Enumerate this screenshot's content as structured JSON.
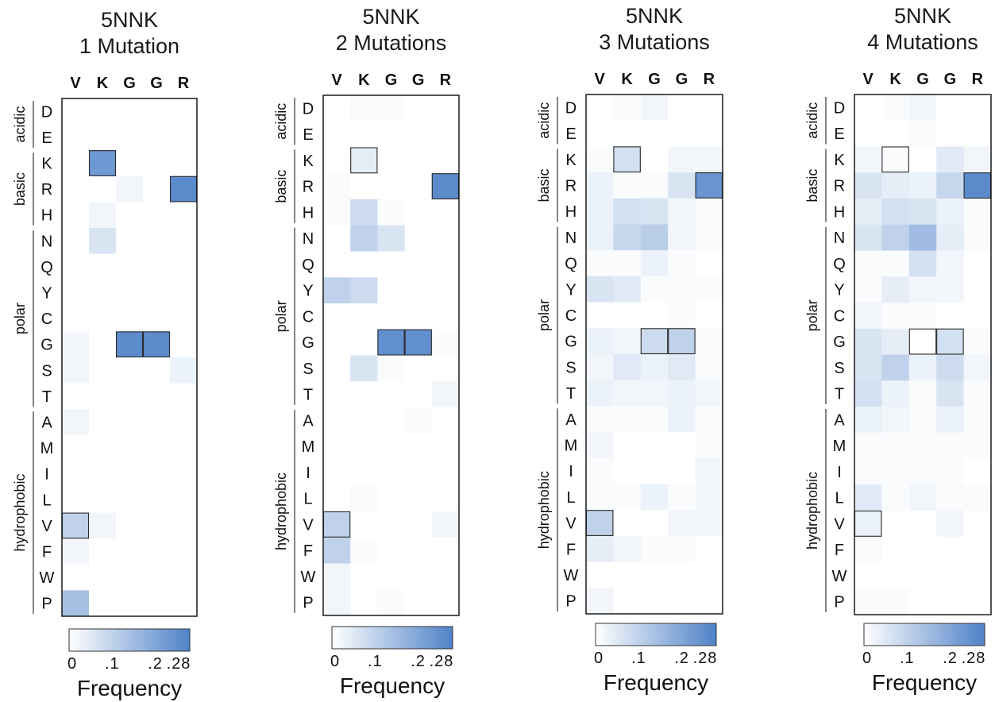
{
  "colors": {
    "low": "#ffffff",
    "high": "#4f82c8",
    "frame": "#1a1a1a",
    "wt_outline": "#2a2a2a"
  },
  "chart_data": [
    {
      "type": "heatmap",
      "title_line1": "5NNK",
      "title_line2": "1 Mutation",
      "x_categories": [
        "V",
        "K",
        "G",
        "G",
        "R"
      ],
      "y_categories": [
        "D",
        "E",
        "K",
        "R",
        "H",
        "N",
        "Q",
        "Y",
        "C",
        "G",
        "S",
        "T",
        "A",
        "M",
        "I",
        "L",
        "V",
        "F",
        "W",
        "P"
      ],
      "groups": [
        {
          "name": "acidic",
          "rows": [
            "D",
            "E"
          ]
        },
        {
          "name": "basic",
          "rows": [
            "K",
            "R",
            "H"
          ]
        },
        {
          "name": "polar",
          "rows": [
            "N",
            "Q",
            "Y",
            "C",
            "G",
            "S",
            "T"
          ]
        },
        {
          "name": "hydrophobic",
          "rows": [
            "A",
            "M",
            "I",
            "L",
            "V",
            "F",
            "W",
            "P"
          ]
        }
      ],
      "values": [
        [
          0,
          0,
          0,
          0,
          0
        ],
        [
          0,
          0,
          0,
          0,
          0
        ],
        [
          0,
          0.23,
          0,
          0,
          0
        ],
        [
          0,
          0,
          0.02,
          0,
          0.26
        ],
        [
          0,
          0.02,
          0,
          0,
          0
        ],
        [
          0,
          0.06,
          0,
          0,
          0
        ],
        [
          0,
          0,
          0,
          0,
          0
        ],
        [
          0,
          0,
          0,
          0,
          0
        ],
        [
          0,
          0,
          0,
          0,
          0
        ],
        [
          0.02,
          0,
          0.26,
          0.26,
          0
        ],
        [
          0.02,
          0,
          0,
          0,
          0.03
        ],
        [
          0,
          0,
          0,
          0,
          0
        ],
        [
          0.02,
          0,
          0,
          0,
          0
        ],
        [
          0,
          0,
          0,
          0,
          0
        ],
        [
          0,
          0,
          0,
          0,
          0
        ],
        [
          0,
          0,
          0,
          0,
          0
        ],
        [
          0.1,
          0.02,
          0,
          0,
          0
        ],
        [
          0.02,
          0,
          0,
          0,
          0
        ],
        [
          0,
          0,
          0,
          0,
          0
        ],
        [
          0.14,
          0,
          0,
          0,
          0
        ]
      ],
      "wildtype": [
        "V",
        "K",
        "G",
        "G",
        "R"
      ],
      "colorbar": {
        "ticks": [
          "0",
          ".1",
          ".2",
          ".28"
        ],
        "min": 0,
        "max": 0.28,
        "label": "Frequency"
      }
    },
    {
      "type": "heatmap",
      "title_line1": "5NNK",
      "title_line2": "2 Mutations",
      "x_categories": [
        "V",
        "K",
        "G",
        "G",
        "R"
      ],
      "y_categories": [
        "D",
        "E",
        "K",
        "R",
        "H",
        "N",
        "Q",
        "Y",
        "C",
        "G",
        "S",
        "T",
        "A",
        "M",
        "I",
        "L",
        "V",
        "F",
        "W",
        "P"
      ],
      "groups": [
        {
          "name": "acidic",
          "rows": [
            "D",
            "E"
          ]
        },
        {
          "name": "basic",
          "rows": [
            "K",
            "R",
            "H"
          ]
        },
        {
          "name": "polar",
          "rows": [
            "N",
            "Q",
            "Y",
            "C",
            "G",
            "S",
            "T"
          ]
        },
        {
          "name": "hydrophobic",
          "rows": [
            "A",
            "M",
            "I",
            "L",
            "V",
            "F",
            "W",
            "P"
          ]
        }
      ],
      "values": [
        [
          0,
          0.01,
          0.01,
          0,
          0
        ],
        [
          0,
          0,
          0,
          0,
          0
        ],
        [
          0,
          0.04,
          0,
          0,
          0
        ],
        [
          0.01,
          0,
          0,
          0,
          0.26
        ],
        [
          0.01,
          0.08,
          0.01,
          0,
          0
        ],
        [
          0,
          0.1,
          0.06,
          0,
          0
        ],
        [
          0,
          0,
          0,
          0,
          0
        ],
        [
          0.1,
          0.08,
          0,
          0,
          0
        ],
        [
          0,
          0,
          0,
          0,
          0
        ],
        [
          0,
          0,
          0.25,
          0.25,
          0.01
        ],
        [
          0,
          0.06,
          0.01,
          0,
          0
        ],
        [
          0,
          0,
          0,
          0,
          0.02
        ],
        [
          0,
          0,
          0,
          0.01,
          0
        ],
        [
          0,
          0,
          0,
          0,
          0
        ],
        [
          0,
          0,
          0,
          0,
          0
        ],
        [
          0,
          0.01,
          0,
          0,
          0
        ],
        [
          0.1,
          0,
          0,
          0,
          0.02
        ],
        [
          0.1,
          0.01,
          0,
          0,
          0
        ],
        [
          0.02,
          0,
          0,
          0,
          0
        ],
        [
          0.02,
          0,
          0.01,
          0,
          0
        ]
      ],
      "wildtype": [
        "V",
        "K",
        "G",
        "G",
        "R"
      ],
      "colorbar": {
        "ticks": [
          "0",
          ".1",
          ".2",
          ".28"
        ],
        "min": 0,
        "max": 0.28,
        "label": "Frequency"
      }
    },
    {
      "type": "heatmap",
      "title_line1": "5NNK",
      "title_line2": "3 Mutations",
      "x_categories": [
        "V",
        "K",
        "G",
        "G",
        "R"
      ],
      "y_categories": [
        "D",
        "E",
        "K",
        "R",
        "H",
        "N",
        "Q",
        "Y",
        "C",
        "G",
        "S",
        "T",
        "A",
        "M",
        "I",
        "L",
        "V",
        "F",
        "W",
        "P"
      ],
      "groups": [
        {
          "name": "acidic",
          "rows": [
            "D",
            "E"
          ]
        },
        {
          "name": "basic",
          "rows": [
            "K",
            "R",
            "H"
          ]
        },
        {
          "name": "polar",
          "rows": [
            "N",
            "Q",
            "Y",
            "C",
            "G",
            "S",
            "T"
          ]
        },
        {
          "name": "hydrophobic",
          "rows": [
            "A",
            "M",
            "I",
            "L",
            "V",
            "F",
            "W",
            "P"
          ]
        }
      ],
      "values": [
        [
          0,
          0.01,
          0.02,
          0,
          0
        ],
        [
          0,
          0,
          0,
          0,
          0
        ],
        [
          0.01,
          0.07,
          0,
          0.02,
          0.02
        ],
        [
          0.03,
          0.01,
          0.01,
          0.06,
          0.24
        ],
        [
          0.03,
          0.07,
          0.06,
          0.02,
          0.01
        ],
        [
          0.03,
          0.09,
          0.11,
          0.02,
          0.01
        ],
        [
          0.01,
          0.01,
          0.03,
          0.01,
          0
        ],
        [
          0.06,
          0.05,
          0.01,
          0.01,
          0.01
        ],
        [
          0,
          0,
          0,
          0.01,
          0
        ],
        [
          0.03,
          0.02,
          0.08,
          0.1,
          0.01
        ],
        [
          0.02,
          0.05,
          0.03,
          0.05,
          0.01
        ],
        [
          0.03,
          0.02,
          0.02,
          0.03,
          0.02
        ],
        [
          0.01,
          0.01,
          0.01,
          0.03,
          0.01
        ],
        [
          0.02,
          0,
          0,
          0,
          0.01
        ],
        [
          0.01,
          0,
          0,
          0,
          0.02
        ],
        [
          0.01,
          0.01,
          0.03,
          0.01,
          0.02
        ],
        [
          0.1,
          0,
          0,
          0.02,
          0.02
        ],
        [
          0.04,
          0.02,
          0.01,
          0.01,
          0
        ],
        [
          0,
          0,
          0,
          0,
          0
        ],
        [
          0.02,
          0,
          0,
          0,
          0
        ]
      ],
      "wildtype": [
        "V",
        "K",
        "G",
        "G",
        "R"
      ],
      "colorbar": {
        "ticks": [
          "0",
          ".1",
          ".2",
          ".28"
        ],
        "min": 0,
        "max": 0.28,
        "label": "Frequency"
      }
    },
    {
      "type": "heatmap",
      "title_line1": "5NNK",
      "title_line2": "4 Mutations",
      "x_categories": [
        "V",
        "K",
        "G",
        "G",
        "R"
      ],
      "y_categories": [
        "D",
        "E",
        "K",
        "R",
        "H",
        "N",
        "Q",
        "Y",
        "C",
        "G",
        "S",
        "T",
        "A",
        "M",
        "I",
        "L",
        "V",
        "F",
        "W",
        "P"
      ],
      "groups": [
        {
          "name": "acidic",
          "rows": [
            "D",
            "E"
          ]
        },
        {
          "name": "basic",
          "rows": [
            "K",
            "R",
            "H"
          ]
        },
        {
          "name": "polar",
          "rows": [
            "N",
            "Q",
            "Y",
            "C",
            "G",
            "S",
            "T"
          ]
        },
        {
          "name": "hydrophobic",
          "rows": [
            "A",
            "M",
            "I",
            "L",
            "V",
            "F",
            "W",
            "P"
          ]
        }
      ],
      "values": [
        [
          0,
          0.01,
          0.02,
          0,
          0
        ],
        [
          0,
          0,
          0.01,
          0,
          0
        ],
        [
          0.02,
          0.01,
          0,
          0.05,
          0.02
        ],
        [
          0.06,
          0.04,
          0.03,
          0.09,
          0.26
        ],
        [
          0.04,
          0.07,
          0.06,
          0.03,
          0.01
        ],
        [
          0.06,
          0.1,
          0.15,
          0.04,
          0.01
        ],
        [
          0.01,
          0.01,
          0.07,
          0.02,
          0
        ],
        [
          0.01,
          0.04,
          0.02,
          0.02,
          0
        ],
        [
          0.02,
          0.01,
          0.01,
          0,
          0
        ],
        [
          0.06,
          0.04,
          0,
          0.07,
          0.01
        ],
        [
          0.06,
          0.1,
          0.03,
          0.08,
          0.02
        ],
        [
          0.07,
          0.03,
          0.01,
          0.06,
          0.01
        ],
        [
          0.03,
          0.02,
          0.01,
          0.03,
          0.01
        ],
        [
          0.01,
          0.01,
          0.01,
          0.01,
          0.01
        ],
        [
          0.01,
          0.01,
          0.01,
          0.01,
          0
        ],
        [
          0.05,
          0.01,
          0.02,
          0.01,
          0.01
        ],
        [
          0.03,
          0,
          0,
          0.02,
          0
        ],
        [
          0.01,
          0,
          0,
          0,
          0
        ],
        [
          0,
          0,
          0,
          0,
          0
        ],
        [
          0.01,
          0.01,
          0,
          0,
          0
        ]
      ],
      "wildtype": [
        "V",
        "K",
        "G",
        "G",
        "R"
      ],
      "colorbar": {
        "ticks": [
          "0",
          ".1",
          ".2",
          ".28"
        ],
        "min": 0,
        "max": 0.28,
        "label": "Frequency"
      }
    }
  ]
}
